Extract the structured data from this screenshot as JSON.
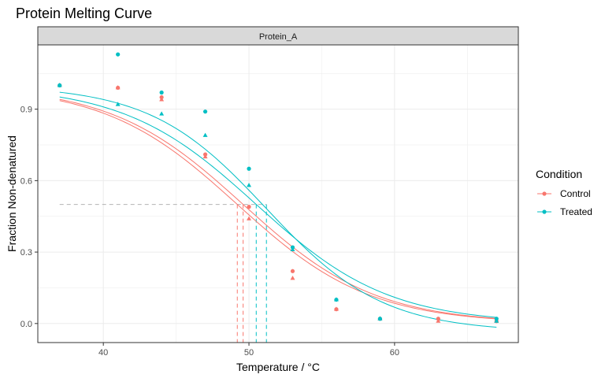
{
  "chart_data": {
    "type": "scatter",
    "title": "Protein Melting Curve",
    "facet": "Protein_A",
    "xlabel": "Temperature / °C",
    "ylabel": "Fraction Non-denatured",
    "xlim": [
      35.5,
      68.5
    ],
    "ylim": [
      -0.08,
      1.17
    ],
    "x_ticks": [
      40,
      50,
      60
    ],
    "y_ticks": [
      0.0,
      0.3,
      0.6,
      0.9
    ],
    "y_tick_labels": [
      "0.0",
      "0.3",
      "0.6",
      "0.9"
    ],
    "grid": true,
    "legend": {
      "title": "Condition",
      "position": "right",
      "entries": [
        {
          "name": "Control",
          "color": "#F8766D"
        },
        {
          "name": "Treated",
          "color": "#00BFC4"
        }
      ]
    },
    "series": [
      {
        "name": "Control",
        "color": "#F8766D",
        "points": [
          {
            "x": 37,
            "y": 1.0,
            "shape": "circle"
          },
          {
            "x": 37,
            "y": 1.0,
            "shape": "triangle"
          },
          {
            "x": 41,
            "y": 0.99,
            "shape": "circle"
          },
          {
            "x": 41,
            "y": 0.99,
            "shape": "triangle"
          },
          {
            "x": 44,
            "y": 0.95,
            "shape": "circle"
          },
          {
            "x": 44,
            "y": 0.94,
            "shape": "triangle"
          },
          {
            "x": 47,
            "y": 0.71,
            "shape": "circle"
          },
          {
            "x": 47,
            "y": 0.7,
            "shape": "triangle"
          },
          {
            "x": 50,
            "y": 0.49,
            "shape": "circle"
          },
          {
            "x": 50,
            "y": 0.44,
            "shape": "triangle"
          },
          {
            "x": 53,
            "y": 0.22,
            "shape": "circle"
          },
          {
            "x": 53,
            "y": 0.19,
            "shape": "triangle"
          },
          {
            "x": 56,
            "y": 0.06,
            "shape": "circle"
          },
          {
            "x": 56,
            "y": 0.06,
            "shape": "triangle"
          },
          {
            "x": 59,
            "y": 0.02,
            "shape": "circle"
          },
          {
            "x": 59,
            "y": 0.02,
            "shape": "triangle"
          },
          {
            "x": 63,
            "y": 0.02,
            "shape": "circle"
          },
          {
            "x": 63,
            "y": 0.01,
            "shape": "triangle"
          },
          {
            "x": 67,
            "y": 0.01,
            "shape": "circle"
          },
          {
            "x": 67,
            "y": 0.01,
            "shape": "triangle"
          }
        ],
        "fits": [
          {
            "tm": 49.6,
            "slope": 0.22,
            "bottom": 0.0,
            "top": 1.0
          },
          {
            "tm": 49.2,
            "slope": 0.22,
            "bottom": 0.0,
            "top": 1.0
          }
        ],
        "tm_values": [
          49.2,
          49.6
        ]
      },
      {
        "name": "Treated",
        "color": "#00BFC4",
        "points": [
          {
            "x": 37,
            "y": 1.0,
            "shape": "circle"
          },
          {
            "x": 37,
            "y": 1.0,
            "shape": "triangle"
          },
          {
            "x": 41,
            "y": 1.13,
            "shape": "circle"
          },
          {
            "x": 41,
            "y": 0.92,
            "shape": "triangle"
          },
          {
            "x": 44,
            "y": 0.97,
            "shape": "circle"
          },
          {
            "x": 44,
            "y": 0.88,
            "shape": "triangle"
          },
          {
            "x": 47,
            "y": 0.89,
            "shape": "circle"
          },
          {
            "x": 47,
            "y": 0.79,
            "shape": "triangle"
          },
          {
            "x": 50,
            "y": 0.65,
            "shape": "circle"
          },
          {
            "x": 50,
            "y": 0.58,
            "shape": "triangle"
          },
          {
            "x": 53,
            "y": 0.32,
            "shape": "circle"
          },
          {
            "x": 53,
            "y": 0.31,
            "shape": "triangle"
          },
          {
            "x": 56,
            "y": 0.1,
            "shape": "circle"
          },
          {
            "x": 56,
            "y": 0.1,
            "shape": "triangle"
          },
          {
            "x": 59,
            "y": 0.02,
            "shape": "circle"
          },
          {
            "x": 59,
            "y": 0.02,
            "shape": "triangle"
          },
          {
            "x": 67,
            "y": 0.02,
            "shape": "circle"
          },
          {
            "x": 67,
            "y": 0.01,
            "shape": "triangle"
          }
        ],
        "fits": [
          {
            "tm": 51.2,
            "slope": 0.25,
            "bottom": -0.035,
            "top": 1.0
          },
          {
            "tm": 50.5,
            "slope": 0.22,
            "bottom": 0.0,
            "top": 1.0
          }
        ],
        "tm_values": [
          50.5,
          51.2
        ]
      }
    ],
    "reference_line": {
      "y": 0.5,
      "x_from": 37,
      "style": "dashed",
      "color": "#b3b3b3"
    }
  }
}
